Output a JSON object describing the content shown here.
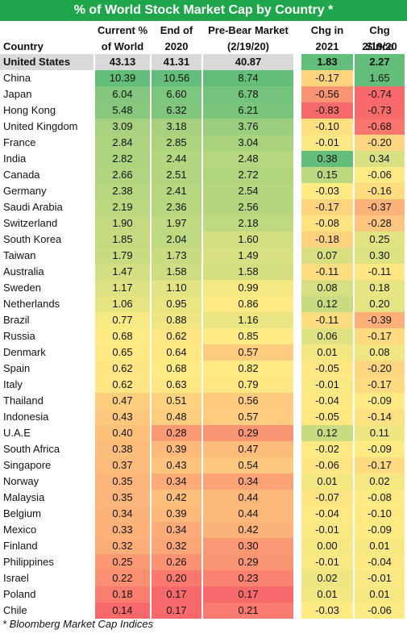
{
  "title": "% of World Stock Market Cap by Country *",
  "footnote": "* Bloomberg Market Cap Indices",
  "chart_data": {
    "type": "table",
    "title": "% of World Stock Market Cap by Country *",
    "columns": [
      {
        "key": "country",
        "label_lines": [
          "",
          "Country"
        ]
      },
      {
        "key": "current",
        "label_lines": [
          "Current %",
          "of World"
        ]
      },
      {
        "key": "end2020",
        "label_lines": [
          "End of",
          "2020"
        ]
      },
      {
        "key": "prebear",
        "label_lines": [
          "Pre-Bear Market",
          "(2/19/20)"
        ]
      },
      {
        "key": "chg2021",
        "label_lines": [
          "Chg in",
          "2021"
        ]
      },
      {
        "key": "chgsince",
        "label_lines": [
          "Chg Since",
          "2/19/20"
        ]
      }
    ],
    "rows": [
      {
        "country": "United States",
        "current": "43.13",
        "end2020": "41.31",
        "prebear": "40.87",
        "chg2021": "1.83",
        "chgsince": "2.27"
      },
      {
        "country": "China",
        "current": "10.39",
        "end2020": "10.56",
        "prebear": "8.74",
        "chg2021": "-0.17",
        "chgsince": "1.65"
      },
      {
        "country": "Japan",
        "current": "6.04",
        "end2020": "6.60",
        "prebear": "6.78",
        "chg2021": "-0.56",
        "chgsince": "-0.74"
      },
      {
        "country": "Hong Kong",
        "current": "5.48",
        "end2020": "6.32",
        "prebear": "6.21",
        "chg2021": "-0.83",
        "chgsince": "-0.73"
      },
      {
        "country": "United Kingdom",
        "current": "3.09",
        "end2020": "3.18",
        "prebear": "3.76",
        "chg2021": "-0.10",
        "chgsince": "-0.68"
      },
      {
        "country": "France",
        "current": "2.84",
        "end2020": "2.85",
        "prebear": "3.04",
        "chg2021": "-0.01",
        "chgsince": "-0.20"
      },
      {
        "country": "India",
        "current": "2.82",
        "end2020": "2.44",
        "prebear": "2.48",
        "chg2021": "0.38",
        "chgsince": "0.34"
      },
      {
        "country": "Canada",
        "current": "2.66",
        "end2020": "2.51",
        "prebear": "2.72",
        "chg2021": "0.15",
        "chgsince": "-0.06"
      },
      {
        "country": "Germany",
        "current": "2.38",
        "end2020": "2.41",
        "prebear": "2.54",
        "chg2021": "-0.03",
        "chgsince": "-0.16"
      },
      {
        "country": "Saudi Arabia",
        "current": "2.19",
        "end2020": "2.36",
        "prebear": "2.56",
        "chg2021": "-0.17",
        "chgsince": "-0.37"
      },
      {
        "country": "Switzerland",
        "current": "1.90",
        "end2020": "1.97",
        "prebear": "2.18",
        "chg2021": "-0.08",
        "chgsince": "-0.28"
      },
      {
        "country": "South Korea",
        "current": "1.85",
        "end2020": "2.04",
        "prebear": "1.60",
        "chg2021": "-0.18",
        "chgsince": "0.25"
      },
      {
        "country": "Taiwan",
        "current": "1.79",
        "end2020": "1.73",
        "prebear": "1.49",
        "chg2021": "0.07",
        "chgsince": "0.30"
      },
      {
        "country": "Australia",
        "current": "1.47",
        "end2020": "1.58",
        "prebear": "1.58",
        "chg2021": "-0.11",
        "chgsince": "-0.11"
      },
      {
        "country": "Sweden",
        "current": "1.17",
        "end2020": "1.10",
        "prebear": "0.99",
        "chg2021": "0.08",
        "chgsince": "0.18"
      },
      {
        "country": "Netherlands",
        "current": "1.06",
        "end2020": "0.95",
        "prebear": "0.86",
        "chg2021": "0.12",
        "chgsince": "0.20"
      },
      {
        "country": "Brazil",
        "current": "0.77",
        "end2020": "0.88",
        "prebear": "1.16",
        "chg2021": "-0.11",
        "chgsince": "-0.39"
      },
      {
        "country": "Russia",
        "current": "0.68",
        "end2020": "0.62",
        "prebear": "0.85",
        "chg2021": "0.06",
        "chgsince": "-0.17"
      },
      {
        "country": "Denmark",
        "current": "0.65",
        "end2020": "0.64",
        "prebear": "0.57",
        "chg2021": "0.01",
        "chgsince": "0.08"
      },
      {
        "country": "Spain",
        "current": "0.62",
        "end2020": "0.68",
        "prebear": "0.82",
        "chg2021": "-0.05",
        "chgsince": "-0.20"
      },
      {
        "country": "Italy",
        "current": "0.62",
        "end2020": "0.63",
        "prebear": "0.79",
        "chg2021": "-0.01",
        "chgsince": "-0.17"
      },
      {
        "country": "Thailand",
        "current": "0.47",
        "end2020": "0.51",
        "prebear": "0.56",
        "chg2021": "-0.04",
        "chgsince": "-0.09"
      },
      {
        "country": "Indonesia",
        "current": "0.43",
        "end2020": "0.48",
        "prebear": "0.57",
        "chg2021": "-0.05",
        "chgsince": "-0.14"
      },
      {
        "country": "U.A.E",
        "current": "0.40",
        "end2020": "0.28",
        "prebear": "0.29",
        "chg2021": "0.12",
        "chgsince": "0.11"
      },
      {
        "country": "South Africa",
        "current": "0.38",
        "end2020": "0.39",
        "prebear": "0.47",
        "chg2021": "-0.02",
        "chgsince": "-0.09"
      },
      {
        "country": "Singapore",
        "current": "0.37",
        "end2020": "0.43",
        "prebear": "0.54",
        "chg2021": "-0.06",
        "chgsince": "-0.17"
      },
      {
        "country": "Norway",
        "current": "0.35",
        "end2020": "0.34",
        "prebear": "0.34",
        "chg2021": "0.01",
        "chgsince": "0.02"
      },
      {
        "country": "Malaysia",
        "current": "0.35",
        "end2020": "0.42",
        "prebear": "0.44",
        "chg2021": "-0.07",
        "chgsince": "-0.08"
      },
      {
        "country": "Belgium",
        "current": "0.34",
        "end2020": "0.39",
        "prebear": "0.44",
        "chg2021": "-0.04",
        "chgsince": "-0.10"
      },
      {
        "country": "Mexico",
        "current": "0.33",
        "end2020": "0.34",
        "prebear": "0.42",
        "chg2021": "-0.01",
        "chgsince": "-0.09"
      },
      {
        "country": "Finland",
        "current": "0.32",
        "end2020": "0.32",
        "prebear": "0.30",
        "chg2021": "0.00",
        "chgsince": "0.01"
      },
      {
        "country": "Philippines",
        "current": "0.25",
        "end2020": "0.26",
        "prebear": "0.29",
        "chg2021": "-0.01",
        "chgsince": "-0.04"
      },
      {
        "country": "Israel",
        "current": "0.22",
        "end2020": "0.20",
        "prebear": "0.23",
        "chg2021": "0.02",
        "chgsince": "-0.01"
      },
      {
        "country": "Poland",
        "current": "0.18",
        "end2020": "0.17",
        "prebear": "0.17",
        "chg2021": "0.01",
        "chgsince": "0.01"
      },
      {
        "country": "Chile",
        "current": "0.14",
        "end2020": "0.17",
        "prebear": "0.21",
        "chg2021": "-0.03",
        "chgsince": "-0.06"
      }
    ],
    "highlight_row": "United States",
    "highlight_colors": {
      "level_cells": "#d9d9d9",
      "change_cells": "#63be7b"
    },
    "color_scale": {
      "low": "#f8696b",
      "mid": "#ffeb84",
      "high": "#63be7b"
    }
  }
}
